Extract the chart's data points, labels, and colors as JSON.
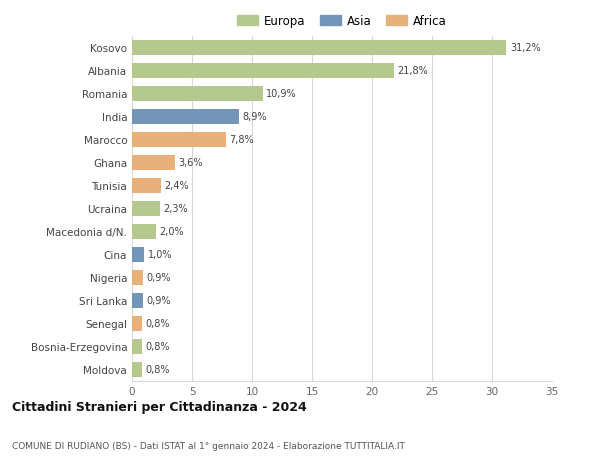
{
  "countries": [
    "Kosovo",
    "Albania",
    "Romania",
    "India",
    "Marocco",
    "Ghana",
    "Tunisia",
    "Ucraina",
    "Macedonia d/N.",
    "Cina",
    "Nigeria",
    "Sri Lanka",
    "Senegal",
    "Bosnia-Erzegovina",
    "Moldova"
  ],
  "values": [
    31.2,
    21.8,
    10.9,
    8.9,
    7.8,
    3.6,
    2.4,
    2.3,
    2.0,
    1.0,
    0.9,
    0.9,
    0.8,
    0.8,
    0.8
  ],
  "labels": [
    "31,2%",
    "21,8%",
    "10,9%",
    "8,9%",
    "7,8%",
    "3,6%",
    "2,4%",
    "2,3%",
    "2,0%",
    "1,0%",
    "0,9%",
    "0,9%",
    "0,8%",
    "0,8%",
    "0,8%"
  ],
  "continents": [
    "Europa",
    "Europa",
    "Europa",
    "Asia",
    "Africa",
    "Africa",
    "Africa",
    "Europa",
    "Europa",
    "Asia",
    "Africa",
    "Asia",
    "Africa",
    "Europa",
    "Europa"
  ],
  "colors": {
    "Europa": "#b5c98e",
    "Asia": "#7395b8",
    "Africa": "#e8b07a"
  },
  "legend_marker_colors": {
    "Europa": "#b5c98e",
    "Asia": "#7395b8",
    "Africa": "#e8b07a"
  },
  "background_color": "#ffffff",
  "grid_color": "#d8d8d8",
  "title": "Cittadini Stranieri per Cittadinanza - 2024",
  "subtitle": "COMUNE DI RUDIANO (BS) - Dati ISTAT al 1° gennaio 2024 - Elaborazione TUTTITALIA.IT",
  "xlim": [
    0,
    35
  ],
  "xticks": [
    0,
    5,
    10,
    15,
    20,
    25,
    30,
    35
  ]
}
